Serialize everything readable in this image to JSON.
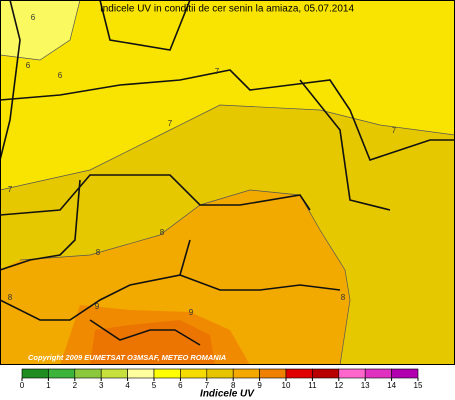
{
  "title": "Indicele UV in conditii de cer senin la amiaza,  05.07.2014",
  "copyright": "Copyright 2009 EUMETSAT O3MSAF, METEO ROMANIA",
  "contour_labels": [
    "6",
    "6",
    "6",
    "7",
    "7",
    "7",
    "7",
    "8",
    "8",
    "8",
    "9",
    "9",
    "8"
  ],
  "colorbar": {
    "label": "Indicele UV",
    "ticks": [
      0,
      1,
      2,
      3,
      4,
      5,
      6,
      7,
      8,
      9,
      10,
      11,
      12,
      13,
      14,
      15
    ],
    "colors": [
      "#1e8c1e",
      "#3cb43c",
      "#8cc83c",
      "#c8e03c",
      "#ffffa0",
      "#ffff00",
      "#f5dc00",
      "#e6c400",
      "#f5a800",
      "#f08000",
      "#e00000",
      "#b80000",
      "#ff66cc",
      "#e030c0",
      "#b000b0"
    ]
  }
}
